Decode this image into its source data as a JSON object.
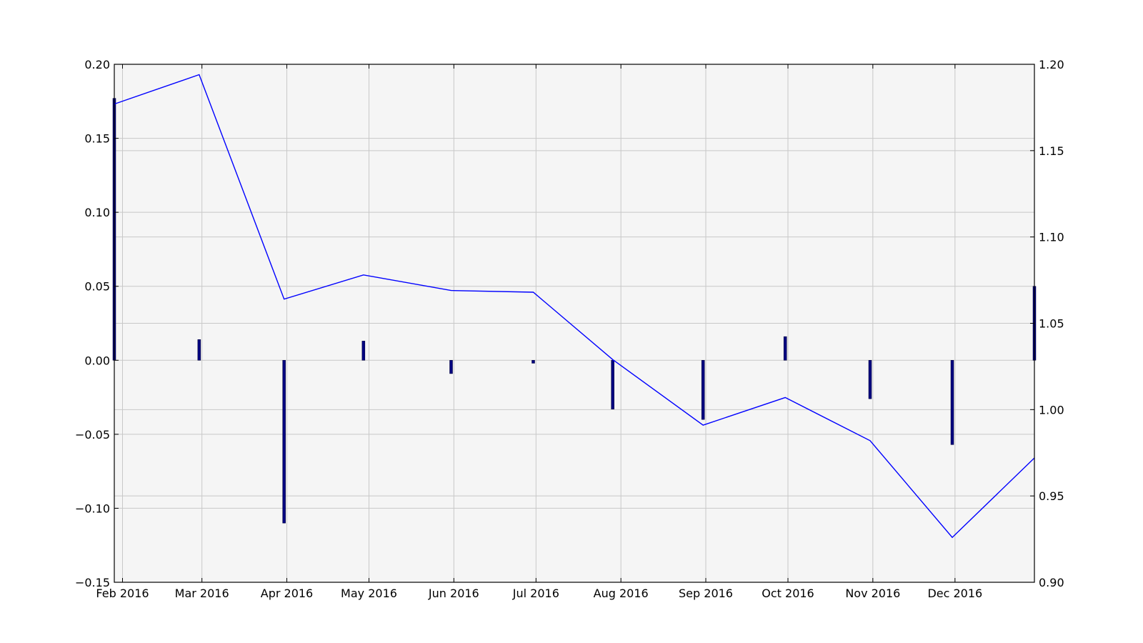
{
  "chart_data": {
    "type": "bar+line",
    "title": "",
    "xlabel": "",
    "ylabel_left": "",
    "ylabel_right": "",
    "x_dates": [
      "2016-01-29",
      "2016-02-29",
      "2016-03-31",
      "2016-04-29",
      "2016-05-31",
      "2016-06-30",
      "2016-07-29",
      "2016-08-31",
      "2016-09-30",
      "2016-10-31",
      "2016-11-30",
      "2016-12-30"
    ],
    "x_range": [
      "2016-01-29",
      "2016-12-30"
    ],
    "x_ticks": [
      {
        "date": "2016-02-01",
        "label": "Feb 2016"
      },
      {
        "date": "2016-03-01",
        "label": "Mar 2016"
      },
      {
        "date": "2016-04-01",
        "label": "Apr 2016"
      },
      {
        "date": "2016-05-01",
        "label": "May 2016"
      },
      {
        "date": "2016-06-01",
        "label": "Jun 2016"
      },
      {
        "date": "2016-07-01",
        "label": "Jul 2016"
      },
      {
        "date": "2016-08-01",
        "label": "Aug 2016"
      },
      {
        "date": "2016-09-01",
        "label": "Sep 2016"
      },
      {
        "date": "2016-10-01",
        "label": "Oct 2016"
      },
      {
        "date": "2016-11-01",
        "label": "Nov 2016"
      },
      {
        "date": "2016-12-01",
        "label": "Dec 2016"
      }
    ],
    "series": [
      {
        "kind": "bar",
        "axis": "left",
        "color": "#000080",
        "values": [
          0.177,
          0.014,
          -0.11,
          0.013,
          -0.009,
          -0.002,
          -0.033,
          -0.04,
          0.016,
          -0.026,
          -0.057,
          0.05
        ]
      },
      {
        "kind": "line",
        "axis": "right",
        "color": "#0000ff",
        "values": [
          1.177,
          1.194,
          1.064,
          1.078,
          1.069,
          1.068,
          1.029,
          0.991,
          1.007,
          0.982,
          0.926,
          0.972
        ]
      }
    ],
    "ylim_left": [
      -0.15,
      0.2
    ],
    "ylim_right": [
      0.9,
      1.2
    ],
    "yticks_left": [
      {
        "value": 0.2,
        "label": "0.20"
      },
      {
        "value": 0.15,
        "label": "0.15"
      },
      {
        "value": 0.1,
        "label": "0.10"
      },
      {
        "value": 0.05,
        "label": "0.05"
      },
      {
        "value": 0.0,
        "label": "0.00"
      },
      {
        "value": -0.05,
        "label": "−0.05"
      },
      {
        "value": -0.1,
        "label": "−0.10"
      },
      {
        "value": -0.15,
        "label": "−0.15"
      }
    ],
    "yticks_right": [
      {
        "value": 1.2,
        "label": "1.20"
      },
      {
        "value": 1.15,
        "label": "1.15"
      },
      {
        "value": 1.1,
        "label": "1.10"
      },
      {
        "value": 1.05,
        "label": "1.05"
      },
      {
        "value": 1.0,
        "label": "1.00"
      },
      {
        "value": 0.95,
        "label": "0.95"
      },
      {
        "value": 0.9,
        "label": "0.90"
      }
    ],
    "grid": true,
    "legend": "none",
    "colors": {
      "background": "#f5f5f5",
      "grid": "#c8c8c8",
      "axis": "#000000"
    }
  }
}
